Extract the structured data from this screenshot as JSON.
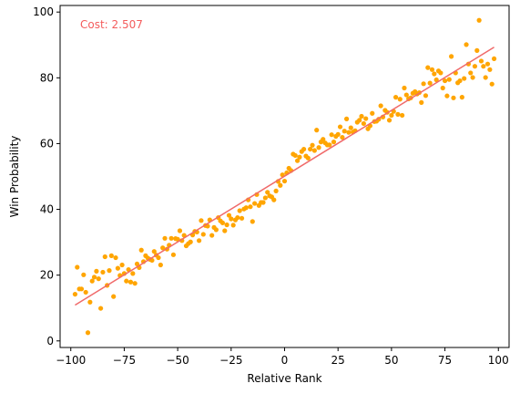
{
  "chart_data": {
    "type": "scatter",
    "xlabel": "Relative Rank",
    "ylabel": "Win Probability",
    "xlim": [
      -105,
      105
    ],
    "ylim": [
      -2,
      102
    ],
    "xticks": [
      -100,
      -75,
      -50,
      -25,
      0,
      25,
      50,
      75,
      100
    ],
    "yticks": [
      0,
      20,
      40,
      60,
      80,
      100
    ],
    "grid": false,
    "annotation": {
      "text": "Cost: 2.507",
      "color": "#f45c5c"
    },
    "fit_line": {
      "x": [
        -98,
        98
      ],
      "y": [
        10.9,
        89.3
      ],
      "color": "#f06a6a"
    },
    "point_color": "#ffa500",
    "points": [
      [
        -98,
        14.2
      ],
      [
        -97,
        22.4
      ],
      [
        -96,
        15.8
      ],
      [
        -95,
        15.8
      ],
      [
        -94,
        20.1
      ],
      [
        -93,
        14.8
      ],
      [
        -92,
        2.5
      ],
      [
        -91,
        11.8
      ],
      [
        -90,
        18.2
      ],
      [
        -89,
        19.4
      ],
      [
        -88,
        21.2
      ],
      [
        -87,
        18.9
      ],
      [
        -86,
        9.9
      ],
      [
        -85,
        20.9
      ],
      [
        -84,
        25.6
      ],
      [
        -83,
        16.9
      ],
      [
        -82,
        21.4
      ],
      [
        -81,
        25.9
      ],
      [
        -80,
        13.5
      ],
      [
        -79,
        25.3
      ],
      [
        -78,
        22.1
      ],
      [
        -77,
        19.9
      ],
      [
        -76,
        23.1
      ],
      [
        -75,
        20.5
      ],
      [
        -74,
        18.2
      ],
      [
        -73,
        21.7
      ],
      [
        -72,
        17.9
      ],
      [
        -71,
        20.5
      ],
      [
        -70,
        17.5
      ],
      [
        -69,
        23.4
      ],
      [
        -68,
        22.3
      ],
      [
        -67,
        27.6
      ],
      [
        -66,
        24.1
      ],
      [
        -65,
        25.9
      ],
      [
        -64,
        25.2
      ],
      [
        -63,
        24.8
      ],
      [
        -62,
        24.5
      ],
      [
        -61,
        27.2
      ],
      [
        -60,
        26.1
      ],
      [
        -59,
        25.3
      ],
      [
        -58,
        23.1
      ],
      [
        -57,
        28.3
      ],
      [
        -56,
        31.2
      ],
      [
        -55,
        27.9
      ],
      [
        -54,
        29.1
      ],
      [
        -53,
        31.2
      ],
      [
        -52,
        26.2
      ],
      [
        -51,
        31.1
      ],
      [
        -50,
        30.9
      ],
      [
        -49,
        33.5
      ],
      [
        -48,
        30.5
      ],
      [
        -47,
        32.1
      ],
      [
        -46,
        28.9
      ],
      [
        -45,
        29.6
      ],
      [
        -44,
        30.1
      ],
      [
        -43,
        32.2
      ],
      [
        -42,
        33.3
      ],
      [
        -41,
        33.1
      ],
      [
        -40,
        30.5
      ],
      [
        -39,
        36.6
      ],
      [
        -38,
        32.4
      ],
      [
        -37,
        35.1
      ],
      [
        -36,
        34.9
      ],
      [
        -35,
        36.8
      ],
      [
        -34,
        32.1
      ],
      [
        -33,
        34.5
      ],
      [
        -32,
        33.8
      ],
      [
        -31,
        37.5
      ],
      [
        -30,
        36.5
      ],
      [
        -29,
        35.9
      ],
      [
        -28,
        33.5
      ],
      [
        -27,
        35.3
      ],
      [
        -26,
        38.2
      ],
      [
        -25,
        37.1
      ],
      [
        -24,
        35.2
      ],
      [
        -23,
        36.8
      ],
      [
        -22,
        37.5
      ],
      [
        -21,
        39.6
      ],
      [
        -20,
        37.3
      ],
      [
        -19,
        40.1
      ],
      [
        -18,
        40.5
      ],
      [
        -17,
        42.9
      ],
      [
        -16,
        40.8
      ],
      [
        -15,
        36.3
      ],
      [
        -14,
        41.8
      ],
      [
        -13,
        44.5
      ],
      [
        -12,
        41.2
      ],
      [
        -11,
        42.1
      ],
      [
        -10,
        42.1
      ],
      [
        -9,
        43.5
      ],
      [
        -8,
        45.2
      ],
      [
        -7,
        44.1
      ],
      [
        -6,
        43.8
      ],
      [
        -5,
        42.9
      ],
      [
        -4,
        45.6
      ],
      [
        -3,
        48.5
      ],
      [
        -2,
        47.3
      ],
      [
        -1,
        50.5
      ],
      [
        0,
        48.6
      ],
      [
        1,
        51.1
      ],
      [
        2,
        52.5
      ],
      [
        3,
        51.8
      ],
      [
        4,
        56.8
      ],
      [
        5,
        56.4
      ],
      [
        6,
        54.8
      ],
      [
        7,
        55.9
      ],
      [
        8,
        57.6
      ],
      [
        9,
        58.3
      ],
      [
        10,
        56.2
      ],
      [
        11,
        55.6
      ],
      [
        12,
        58.3
      ],
      [
        13,
        59.5
      ],
      [
        14,
        57.9
      ],
      [
        15,
        64.1
      ],
      [
        16,
        58.8
      ],
      [
        17,
        60.5
      ],
      [
        18,
        61.3
      ],
      [
        19,
        60.2
      ],
      [
        20,
        59.6
      ],
      [
        21,
        59.6
      ],
      [
        22,
        62.7
      ],
      [
        23,
        60.5
      ],
      [
        24,
        62.2
      ],
      [
        25,
        62.8
      ],
      [
        26,
        65.1
      ],
      [
        27,
        61.9
      ],
      [
        28,
        63.8
      ],
      [
        29,
        67.5
      ],
      [
        30,
        63.4
      ],
      [
        31,
        64.8
      ],
      [
        32,
        63.5
      ],
      [
        33,
        63.9
      ],
      [
        34,
        66.5
      ],
      [
        35,
        67.1
      ],
      [
        36,
        68.3
      ],
      [
        37,
        66.1
      ],
      [
        38,
        67.6
      ],
      [
        39,
        64.5
      ],
      [
        40,
        65.4
      ],
      [
        41,
        69.2
      ],
      [
        42,
        66.7
      ],
      [
        43,
        66.8
      ],
      [
        44,
        67.4
      ],
      [
        45,
        71.5
      ],
      [
        46,
        68.1
      ],
      [
        47,
        70.1
      ],
      [
        48,
        69.5
      ],
      [
        49,
        67.1
      ],
      [
        50,
        68.6
      ],
      [
        51,
        69.8
      ],
      [
        52,
        74.1
      ],
      [
        53,
        68.9
      ],
      [
        54,
        73.5
      ],
      [
        55,
        68.6
      ],
      [
        56,
        76.9
      ],
      [
        57,
        74.8
      ],
      [
        58,
        73.6
      ],
      [
        59,
        73.9
      ],
      [
        60,
        75.3
      ],
      [
        61,
        75.8
      ],
      [
        62,
        75.1
      ],
      [
        63,
        75.5
      ],
      [
        64,
        72.5
      ],
      [
        65,
        78.2
      ],
      [
        66,
        74.6
      ],
      [
        67,
        83.1
      ],
      [
        68,
        78.4
      ],
      [
        69,
        82.5
      ],
      [
        70,
        81.2
      ],
      [
        71,
        79.4
      ],
      [
        72,
        82.1
      ],
      [
        73,
        81.5
      ],
      [
        74,
        76.9
      ],
      [
        75,
        79.1
      ],
      [
        76,
        74.5
      ],
      [
        77,
        79.5
      ],
      [
        78,
        86.5
      ],
      [
        79,
        73.9
      ],
      [
        80,
        81.5
      ],
      [
        81,
        78.5
      ],
      [
        82,
        79.1
      ],
      [
        83,
        74.1
      ],
      [
        84,
        79.8
      ],
      [
        85,
        90.1
      ],
      [
        86,
        84.2
      ],
      [
        87,
        81.5
      ],
      [
        88,
        80.1
      ],
      [
        89,
        83.5
      ],
      [
        90,
        88.3
      ],
      [
        91,
        97.5
      ],
      [
        92,
        85.1
      ],
      [
        93,
        83.5
      ],
      [
        94,
        80.1
      ],
      [
        95,
        84.2
      ],
      [
        96,
        82.5
      ],
      [
        97,
        78.1
      ],
      [
        98,
        85.8
      ]
    ]
  }
}
